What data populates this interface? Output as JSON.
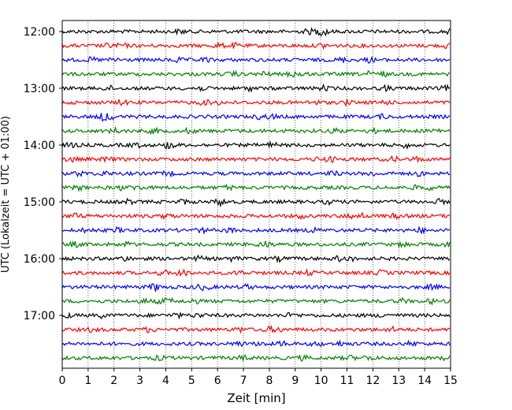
{
  "chart_data": {
    "type": "line",
    "title": "",
    "xlabel": "Zeit  [min]",
    "ylabel": "UTC (Lokalzeit = UTC + 01:00)",
    "xlim": [
      0,
      15
    ],
    "x_ticks": [
      "0",
      "1",
      "2",
      "3",
      "4",
      "5",
      "6",
      "7",
      "8",
      "9",
      "10",
      "11",
      "12",
      "13",
      "14",
      "15"
    ],
    "y_tick_labels": [
      "12:00",
      "13:00",
      "14:00",
      "15:00",
      "16:00",
      "17:00"
    ],
    "grid": "vertical dotted lines at each minute",
    "trace_interval_minutes": 15,
    "first_trace": "12:00",
    "trace_count": 24,
    "trace_color_cycle": [
      "#000000",
      "#ff0000",
      "#0000ff",
      "#008000"
    ]
  }
}
